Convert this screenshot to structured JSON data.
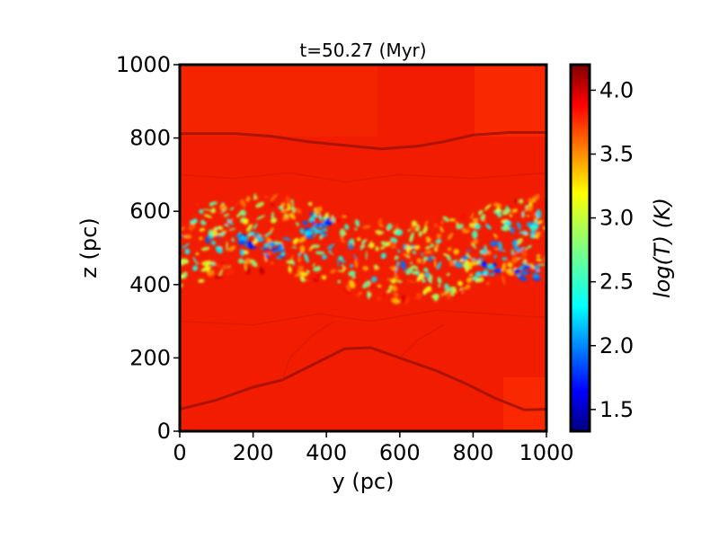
{
  "chart_data": {
    "type": "heatmap",
    "title": "t=50.27 (Myr)",
    "xlabel": "y (pc)",
    "ylabel": "z (pc)",
    "xlim": [
      0,
      1000
    ],
    "ylim": [
      0,
      1000
    ],
    "xticks": [
      0,
      200,
      400,
      600,
      800,
      1000
    ],
    "yticks": [
      0,
      200,
      400,
      600,
      800,
      1000
    ],
    "colorbar": {
      "label": "log(T) (K)",
      "colormap": "jet",
      "range": [
        1.33,
        4.2
      ],
      "ticks": [
        1.5,
        2.0,
        2.5,
        3.0,
        3.5,
        4.0
      ]
    },
    "features": {
      "cold_layer_z_range": [
        380,
        620
      ],
      "upper_shock_front_z": 810,
      "lower_shock_front_profile": [
        {
          "y": 0,
          "z": 60
        },
        {
          "y": 100,
          "z": 85
        },
        {
          "y": 200,
          "z": 120
        },
        {
          "y": 280,
          "z": 140
        },
        {
          "y": 380,
          "z": 190
        },
        {
          "y": 450,
          "z": 225
        },
        {
          "y": 520,
          "z": 228
        },
        {
          "y": 600,
          "z": 200
        },
        {
          "y": 700,
          "z": 165
        },
        {
          "y": 780,
          "z": 130
        },
        {
          "y": 860,
          "z": 90
        },
        {
          "y": 940,
          "z": 58
        },
        {
          "y": 1000,
          "z": 60
        }
      ],
      "upper_shock_front_profile": [
        {
          "y": 0,
          "z": 812
        },
        {
          "y": 150,
          "z": 812
        },
        {
          "y": 250,
          "z": 805
        },
        {
          "y": 350,
          "z": 790
        },
        {
          "y": 450,
          "z": 780
        },
        {
          "y": 550,
          "z": 770
        },
        {
          "y": 650,
          "z": 778
        },
        {
          "y": 720,
          "z": 790
        },
        {
          "y": 800,
          "z": 808
        },
        {
          "y": 900,
          "z": 815
        },
        {
          "y": 1000,
          "z": 815
        }
      ],
      "background_log_T": 3.9
    }
  }
}
